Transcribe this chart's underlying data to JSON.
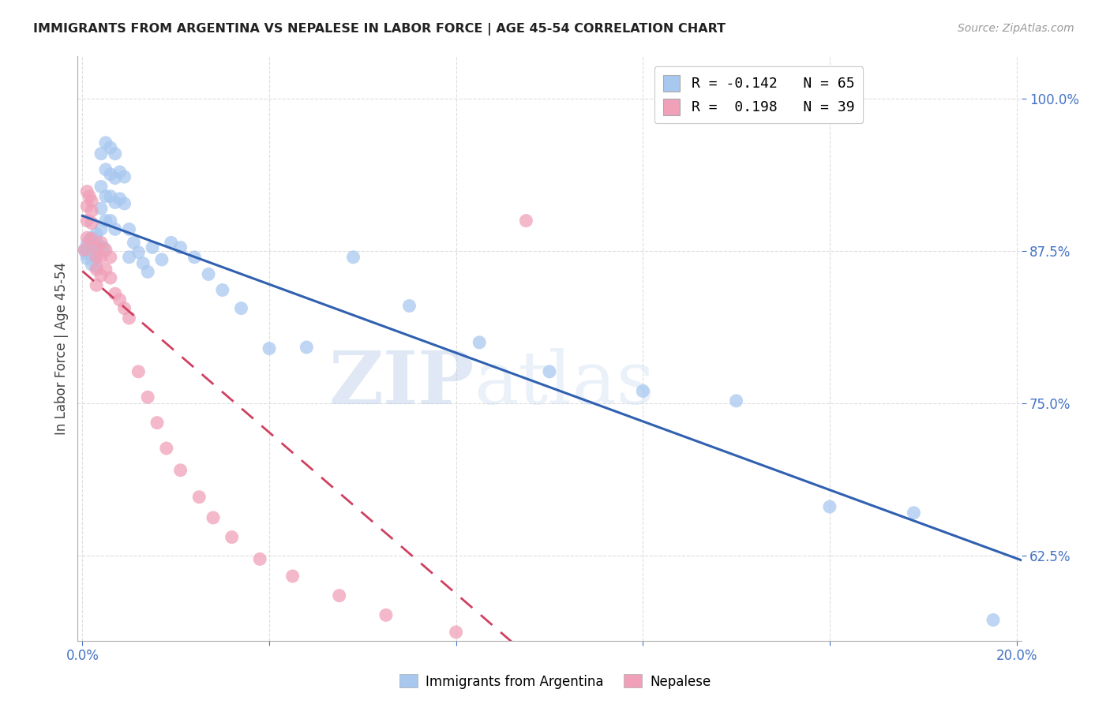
{
  "title": "IMMIGRANTS FROM ARGENTINA VS NEPALESE IN LABOR FORCE | AGE 45-54 CORRELATION CHART",
  "source": "Source: ZipAtlas.com",
  "ylabel": "In Labor Force | Age 45-54",
  "xlim": [
    -0.001,
    0.201
  ],
  "ylim": [
    0.555,
    1.035
  ],
  "xticks": [
    0.0,
    0.04,
    0.08,
    0.12,
    0.16,
    0.2
  ],
  "xticklabels": [
    "0.0%",
    "",
    "",
    "",
    "",
    "20.0%"
  ],
  "yticks": [
    0.625,
    0.75,
    0.875,
    1.0
  ],
  "yticklabels": [
    "62.5%",
    "75.0%",
    "87.5%",
    "100.0%"
  ],
  "r1": "-0.142",
  "n1": "65",
  "r2": "0.198",
  "n2": "39",
  "watermark_zip": "ZIP",
  "watermark_atlas": "atlas",
  "blue_color": "#a8c8f0",
  "pink_color": "#f0a0b8",
  "blue_line_color": "#3060b0",
  "pink_line_color": "#d04060",
  "axis_label_color": "#4472c4",
  "grid_color": "#dddddd",
  "argentina_x": [
    0.0005,
    0.0008,
    0.001,
    0.001,
    0.001,
    0.0012,
    0.0015,
    0.0015,
    0.002,
    0.002,
    0.002,
    0.002,
    0.0025,
    0.003,
    0.003,
    0.003,
    0.003,
    0.003,
    0.0035,
    0.004,
    0.004,
    0.004,
    0.004,
    0.0045,
    0.005,
    0.005,
    0.005,
    0.005,
    0.006,
    0.006,
    0.006,
    0.006,
    0.007,
    0.007,
    0.007,
    0.007,
    0.008,
    0.008,
    0.009,
    0.009,
    0.01,
    0.01,
    0.011,
    0.012,
    0.013,
    0.014,
    0.015,
    0.017,
    0.019,
    0.021,
    0.024,
    0.027,
    0.03,
    0.034,
    0.04,
    0.048,
    0.058,
    0.07,
    0.085,
    0.1,
    0.12,
    0.14,
    0.16,
    0.178,
    0.195
  ],
  "argentina_y": [
    0.876,
    0.873,
    0.881,
    0.876,
    0.869,
    0.878,
    0.884,
    0.876,
    0.886,
    0.879,
    0.872,
    0.864,
    0.88,
    0.889,
    0.883,
    0.877,
    0.87,
    0.862,
    0.879,
    0.955,
    0.928,
    0.91,
    0.893,
    0.878,
    0.964,
    0.942,
    0.92,
    0.9,
    0.96,
    0.938,
    0.92,
    0.9,
    0.955,
    0.935,
    0.915,
    0.893,
    0.94,
    0.918,
    0.936,
    0.914,
    0.893,
    0.87,
    0.882,
    0.874,
    0.865,
    0.858,
    0.878,
    0.868,
    0.882,
    0.878,
    0.87,
    0.856,
    0.843,
    0.828,
    0.795,
    0.796,
    0.87,
    0.83,
    0.8,
    0.776,
    0.76,
    0.752,
    0.665,
    0.66,
    0.572
  ],
  "nepal_x": [
    0.0005,
    0.001,
    0.001,
    0.001,
    0.001,
    0.0015,
    0.002,
    0.002,
    0.002,
    0.002,
    0.003,
    0.003,
    0.003,
    0.003,
    0.004,
    0.004,
    0.004,
    0.005,
    0.005,
    0.006,
    0.006,
    0.007,
    0.008,
    0.009,
    0.01,
    0.012,
    0.014,
    0.016,
    0.018,
    0.021,
    0.025,
    0.028,
    0.032,
    0.038,
    0.045,
    0.055,
    0.065,
    0.08,
    0.095
  ],
  "nepal_y": [
    0.876,
    0.924,
    0.912,
    0.9,
    0.886,
    0.92,
    0.916,
    0.908,
    0.898,
    0.885,
    0.878,
    0.87,
    0.86,
    0.847,
    0.882,
    0.87,
    0.855,
    0.876,
    0.86,
    0.87,
    0.853,
    0.84,
    0.835,
    0.828,
    0.82,
    0.776,
    0.755,
    0.734,
    0.713,
    0.695,
    0.673,
    0.656,
    0.64,
    0.622,
    0.608,
    0.592,
    0.576,
    0.562,
    0.9
  ],
  "blue_trend_start_x": 0.0,
  "blue_trend_end_x": 0.201,
  "pink_trend_start_x": 0.0,
  "pink_trend_end_x": 0.201
}
